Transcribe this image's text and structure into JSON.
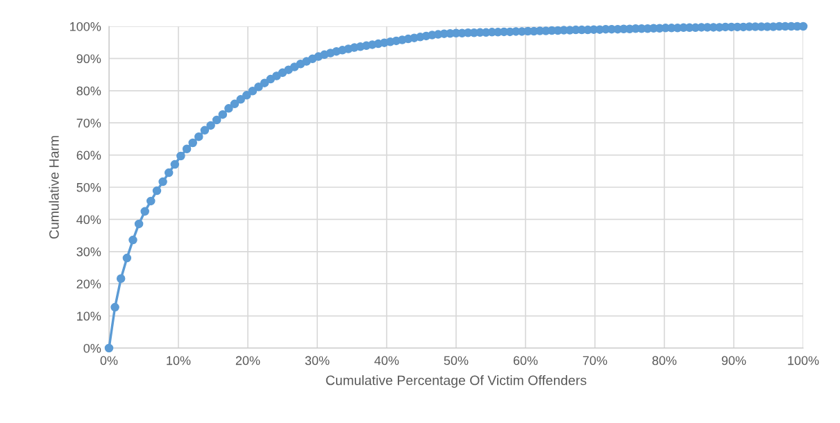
{
  "chart_data": {
    "type": "line",
    "xlabel": "Cumulative Percentage Of Victim Offenders",
    "ylabel": "Cumulative Harm",
    "x": [
      0,
      0.86,
      1.72,
      2.59,
      3.45,
      4.31,
      5.17,
      6.03,
      6.9,
      7.76,
      8.62,
      9.48,
      10.34,
      11.21,
      12.07,
      12.93,
      13.79,
      14.66,
      15.52,
      16.38,
      17.24,
      18.1,
      18.97,
      19.83,
      20.69,
      21.55,
      22.41,
      23.28,
      24.14,
      25,
      25.86,
      26.72,
      27.59,
      28.45,
      29.31,
      30.17,
      31.03,
      31.9,
      32.76,
      33.62,
      34.48,
      35.34,
      36.21,
      37.07,
      37.93,
      38.79,
      39.66,
      40.52,
      41.38,
      42.24,
      43.1,
      43.97,
      44.83,
      45.69,
      46.55,
      47.41,
      48.28,
      49.14,
      50,
      50.86,
      51.72,
      52.59,
      53.45,
      54.31,
      55.17,
      56.03,
      56.9,
      57.76,
      58.62,
      59.48,
      60.34,
      61.21,
      62.07,
      62.93,
      63.79,
      64.66,
      65.52,
      66.38,
      67.24,
      68.1,
      68.97,
      69.83,
      70.69,
      71.55,
      72.41,
      73.28,
      74.14,
      75,
      75.86,
      76.72,
      77.59,
      78.45,
      79.31,
      80.17,
      81.03,
      81.9,
      82.76,
      83.62,
      84.48,
      85.34,
      86.21,
      87.07,
      87.93,
      88.79,
      89.66,
      90.52,
      91.38,
      92.24,
      93.1,
      93.97,
      94.83,
      95.69,
      96.55,
      97.41,
      98.28,
      99.14,
      100
    ],
    "series": [
      {
        "color": "#5b9bd5",
        "values": [
          0,
          12.7,
          21.6,
          28.0,
          33.6,
          38.6,
          42.5,
          45.7,
          48.9,
          51.7,
          54.5,
          57.1,
          59.7,
          61.9,
          63.8,
          65.7,
          67.7,
          69.2,
          70.9,
          72.6,
          74.5,
          75.9,
          77.3,
          78.6,
          79.9,
          81.2,
          82.4,
          83.6,
          84.6,
          85.6,
          86.5,
          87.4,
          88.3,
          89.1,
          89.9,
          90.6,
          91.2,
          91.7,
          92.2,
          92.6,
          93.0,
          93.4,
          93.7,
          94.0,
          94.3,
          94.6,
          94.9,
          95.2,
          95.5,
          95.8,
          96.1,
          96.4,
          96.7,
          97.0,
          97.3,
          97.5,
          97.7,
          97.8,
          97.9,
          97.9,
          98.0,
          98.0,
          98.1,
          98.1,
          98.2,
          98.2,
          98.3,
          98.3,
          98.4,
          98.4,
          98.5,
          98.5,
          98.6,
          98.6,
          98.7,
          98.7,
          98.8,
          98.8,
          98.9,
          98.9,
          98.9,
          99.0,
          99.0,
          99.1,
          99.1,
          99.1,
          99.2,
          99.2,
          99.3,
          99.3,
          99.3,
          99.4,
          99.4,
          99.5,
          99.5,
          99.5,
          99.6,
          99.6,
          99.6,
          99.7,
          99.7,
          99.7,
          99.7,
          99.8,
          99.8,
          99.8,
          99.8,
          99.9,
          99.9,
          99.9,
          99.9,
          99.9,
          100,
          100,
          100,
          100,
          100
        ]
      }
    ],
    "xlim": [
      0,
      100
    ],
    "ylim": [
      0,
      100
    ],
    "xticks": [
      {
        "value": 0,
        "label": "0%"
      },
      {
        "value": 10,
        "label": "10%"
      },
      {
        "value": 20,
        "label": "20%"
      },
      {
        "value": 30,
        "label": "30%"
      },
      {
        "value": 40,
        "label": "40%"
      },
      {
        "value": 50,
        "label": "50%"
      },
      {
        "value": 60,
        "label": "60%"
      },
      {
        "value": 70,
        "label": "70%"
      },
      {
        "value": 80,
        "label": "80%"
      },
      {
        "value": 90,
        "label": "90%"
      },
      {
        "value": 100,
        "label": "100%"
      }
    ],
    "yticks": [
      {
        "value": 0,
        "label": "0%"
      },
      {
        "value": 10,
        "label": "10%"
      },
      {
        "value": 20,
        "label": "20%"
      },
      {
        "value": 30,
        "label": "30%"
      },
      {
        "value": 40,
        "label": "40%"
      },
      {
        "value": 50,
        "label": "50%"
      },
      {
        "value": 60,
        "label": "60%"
      },
      {
        "value": 70,
        "label": "70%"
      },
      {
        "value": 80,
        "label": "80%"
      },
      {
        "value": 90,
        "label": "90%"
      },
      {
        "value": 100,
        "label": "100%"
      }
    ],
    "grid": true,
    "marker": "circle",
    "line_style": "solid",
    "legend": false
  }
}
